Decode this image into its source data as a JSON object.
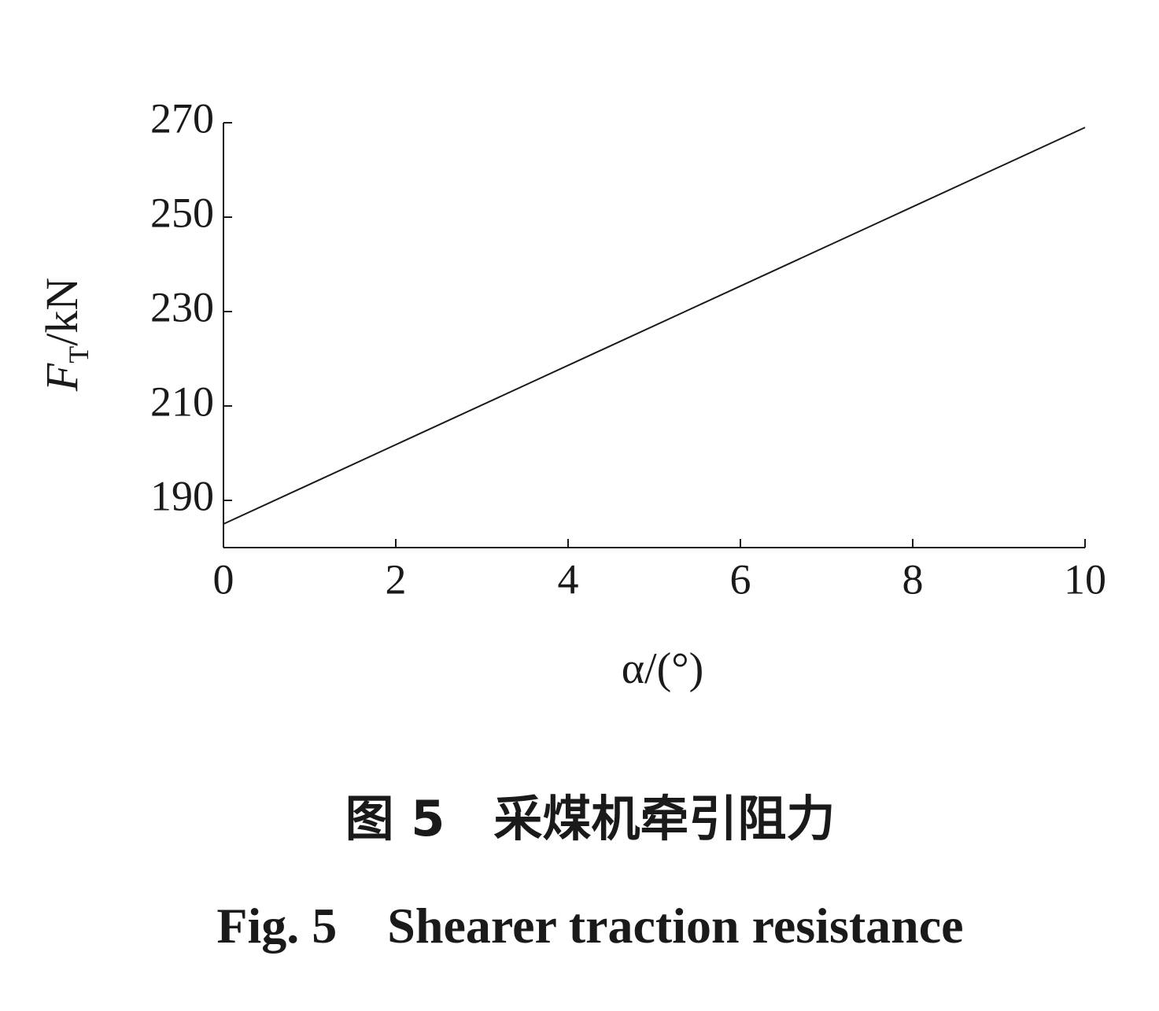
{
  "chart_data": {
    "type": "line",
    "x": [
      0,
      10
    ],
    "series": [
      {
        "values": [
          185,
          269
        ],
        "color": "#1a1a1a"
      }
    ],
    "xlim": [
      0,
      10
    ],
    "xticks": [
      0,
      2,
      4,
      6,
      8,
      10
    ],
    "ylim": [
      180,
      270
    ],
    "yticks": [
      190,
      210,
      230,
      250,
      270
    ],
    "ylabel": {
      "symbol": "F",
      "subscript": "T",
      "unit": "/kN"
    },
    "xlabel": "α/(°)",
    "caption_cn": "图 5　采煤机牵引阻力",
    "caption_en": "Fig. 5　Shearer traction resistance"
  }
}
